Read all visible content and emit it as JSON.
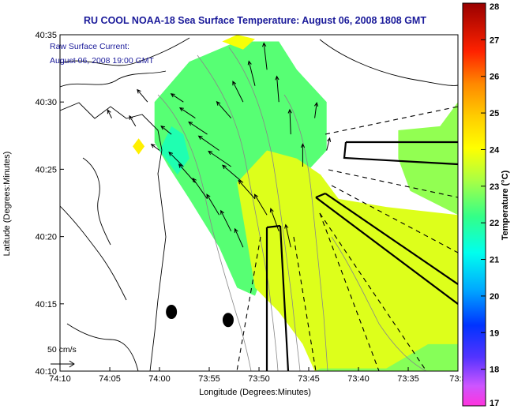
{
  "chart_data": {
    "type": "heatmap",
    "title": "RU COOL  NOAA-18  Sea Surface Temperature:  August 06, 2008 1808 GMT",
    "overlay": {
      "label": "Raw Surface Current:",
      "time": "August 06, 2008 19:00 GMT",
      "scale_label": "50 cm/s",
      "scale_speed_cm_s": 50
    },
    "xlabel": "Longitude (Degrees:Minutes)",
    "ylabel": "Latitude (Degrees:Minutes)",
    "xlim": [
      -74.1667,
      -73.5
    ],
    "ylim": [
      40.1667,
      40.5833
    ],
    "x_ticks": [
      {
        "value": -74.1667,
        "label": "74:10"
      },
      {
        "value": -74.0833,
        "label": "74:05"
      },
      {
        "value": -74.0,
        "label": "74:00"
      },
      {
        "value": -73.9167,
        "label": "73:55"
      },
      {
        "value": -73.8333,
        "label": "73:50"
      },
      {
        "value": -73.75,
        "label": "73:45"
      },
      {
        "value": -73.6667,
        "label": "73:40"
      },
      {
        "value": -73.5833,
        "label": "73:35"
      },
      {
        "value": -73.5,
        "label": "73:3"
      }
    ],
    "y_ticks": [
      {
        "value": 40.1667,
        "label": "40:10"
      },
      {
        "value": 40.25,
        "label": "40:15"
      },
      {
        "value": 40.3333,
        "label": "40:20"
      },
      {
        "value": 40.4167,
        "label": "40:25"
      },
      {
        "value": 40.5,
        "label": "40:30"
      },
      {
        "value": 40.5833,
        "label": "40:35"
      }
    ],
    "colorbar": {
      "label": "Temperature (°C)",
      "min": 17,
      "max": 28,
      "ticks": [
        17,
        18,
        19,
        20,
        21,
        22,
        23,
        24,
        25,
        26,
        27,
        28
      ]
    },
    "sst_regions": [
      {
        "temp": 22.3,
        "outline": [
          [
            -74.0083,
            40.5
          ],
          [
            -73.95,
            40.55
          ],
          [
            -73.87,
            40.575
          ],
          [
            -73.8,
            40.575
          ],
          [
            -73.77,
            40.54
          ],
          [
            -73.72,
            40.5
          ],
          [
            -73.72,
            40.44
          ],
          [
            -73.77,
            40.4
          ],
          [
            -73.79,
            40.35
          ],
          [
            -73.82,
            40.3
          ],
          [
            -73.84,
            40.26
          ],
          [
            -73.87,
            40.27
          ],
          [
            -73.9,
            40.32
          ],
          [
            -73.95,
            40.38
          ],
          [
            -73.985,
            40.42
          ],
          [
            -74.0083,
            40.45
          ]
        ]
      },
      {
        "temp": 23.6,
        "outline": [
          [
            -73.87,
            40.4
          ],
          [
            -73.82,
            40.44
          ],
          [
            -73.77,
            40.43
          ],
          [
            -73.73,
            40.41
          ],
          [
            -73.7,
            40.38
          ],
          [
            -73.62,
            40.37
          ],
          [
            -73.5,
            40.36
          ],
          [
            -73.5,
            40.1667
          ],
          [
            -73.74,
            40.1667
          ],
          [
            -73.76,
            40.2
          ],
          [
            -73.8,
            40.24
          ],
          [
            -73.84,
            40.27
          ]
        ]
      },
      {
        "temp": 22.8,
        "outline": [
          [
            -73.6,
            40.465
          ],
          [
            -73.53,
            40.47
          ],
          [
            -73.5,
            40.5
          ],
          [
            -73.5,
            40.36
          ],
          [
            -73.58,
            40.39
          ],
          [
            -73.6,
            40.43
          ]
        ]
      },
      {
        "temp": 22.7,
        "outline": [
          [
            -73.73,
            40.17
          ],
          [
            -73.62,
            40.17
          ],
          [
            -73.55,
            40.2
          ],
          [
            -73.5,
            40.2
          ],
          [
            -73.5,
            40.1667
          ],
          [
            -73.74,
            40.1667
          ]
        ]
      },
      {
        "temp": 21.6,
        "outline": [
          [
            -74.0,
            40.44
          ],
          [
            -73.98,
            40.47
          ],
          [
            -73.96,
            40.46
          ],
          [
            -73.95,
            40.43
          ],
          [
            -73.97,
            40.41
          ]
        ]
      },
      {
        "temp": 23.9,
        "outline": [
          [
            -73.895,
            40.575
          ],
          [
            -73.87,
            40.5833
          ],
          [
            -73.84,
            40.578
          ],
          [
            -73.86,
            40.565
          ]
        ]
      },
      {
        "temp": 24.3,
        "outline": [
          [
            -74.045,
            40.445
          ],
          [
            -74.035,
            40.455
          ],
          [
            -74.025,
            40.445
          ],
          [
            -74.035,
            40.435
          ]
        ]
      }
    ],
    "current_vectors": [
      {
        "lon": -73.96,
        "lat": 40.5,
        "u": -12,
        "v": 8
      },
      {
        "lon": -73.94,
        "lat": 40.48,
        "u": -15,
        "v": 10
      },
      {
        "lon": -73.92,
        "lat": 40.46,
        "u": -18,
        "v": 12
      },
      {
        "lon": -73.9,
        "lat": 40.44,
        "u": -20,
        "v": 14
      },
      {
        "lon": -73.88,
        "lat": 40.42,
        "u": -22,
        "v": 15
      },
      {
        "lon": -73.86,
        "lat": 40.4,
        "u": -20,
        "v": 17
      },
      {
        "lon": -73.84,
        "lat": 40.38,
        "u": -16,
        "v": 18
      },
      {
        "lon": -73.82,
        "lat": 40.36,
        "u": -12,
        "v": 20
      },
      {
        "lon": -73.8,
        "lat": 40.34,
        "u": -8,
        "v": 22
      },
      {
        "lon": -73.78,
        "lat": 40.32,
        "u": -5,
        "v": 22
      },
      {
        "lon": -73.8,
        "lat": 40.5,
        "u": -2,
        "v": 25
      },
      {
        "lon": -73.78,
        "lat": 40.46,
        "u": -1,
        "v": 24
      },
      {
        "lon": -73.76,
        "lat": 40.42,
        "u": 0,
        "v": 22
      },
      {
        "lon": -73.82,
        "lat": 40.54,
        "u": -3,
        "v": 26
      },
      {
        "lon": -73.84,
        "lat": 40.52,
        "u": -6,
        "v": 24
      },
      {
        "lon": -73.86,
        "lat": 40.5,
        "u": -10,
        "v": 20
      },
      {
        "lon": -73.88,
        "lat": 40.48,
        "u": -14,
        "v": 16
      },
      {
        "lon": -73.98,
        "lat": 40.46,
        "u": -10,
        "v": 8
      },
      {
        "lon": -74.0,
        "lat": 40.44,
        "u": -8,
        "v": 6
      },
      {
        "lon": -73.96,
        "lat": 40.42,
        "u": -14,
        "v": 14
      },
      {
        "lon": -73.94,
        "lat": 40.4,
        "u": -16,
        "v": 18
      },
      {
        "lon": -73.92,
        "lat": 40.38,
        "u": -14,
        "v": 20
      },
      {
        "lon": -73.9,
        "lat": 40.36,
        "u": -12,
        "v": 20
      },
      {
        "lon": -73.88,
        "lat": 40.34,
        "u": -10,
        "v": 20
      },
      {
        "lon": -73.86,
        "lat": 40.32,
        "u": -8,
        "v": 18
      },
      {
        "lon": -74.04,
        "lat": 40.47,
        "u": -6,
        "v": 10
      },
      {
        "lon": -74.08,
        "lat": 40.48,
        "u": -4,
        "v": 8
      },
      {
        "lon": -74.02,
        "lat": 40.5,
        "u": -10,
        "v": 12
      },
      {
        "lon": -73.74,
        "lat": 40.48,
        "u": 2,
        "v": 15
      },
      {
        "lon": -73.72,
        "lat": 40.44,
        "u": 3,
        "v": 12
      }
    ],
    "buoys": [
      {
        "lon": -73.98,
        "lat": 40.24
      },
      {
        "lon": -73.885,
        "lat": 40.23
      }
    ]
  }
}
